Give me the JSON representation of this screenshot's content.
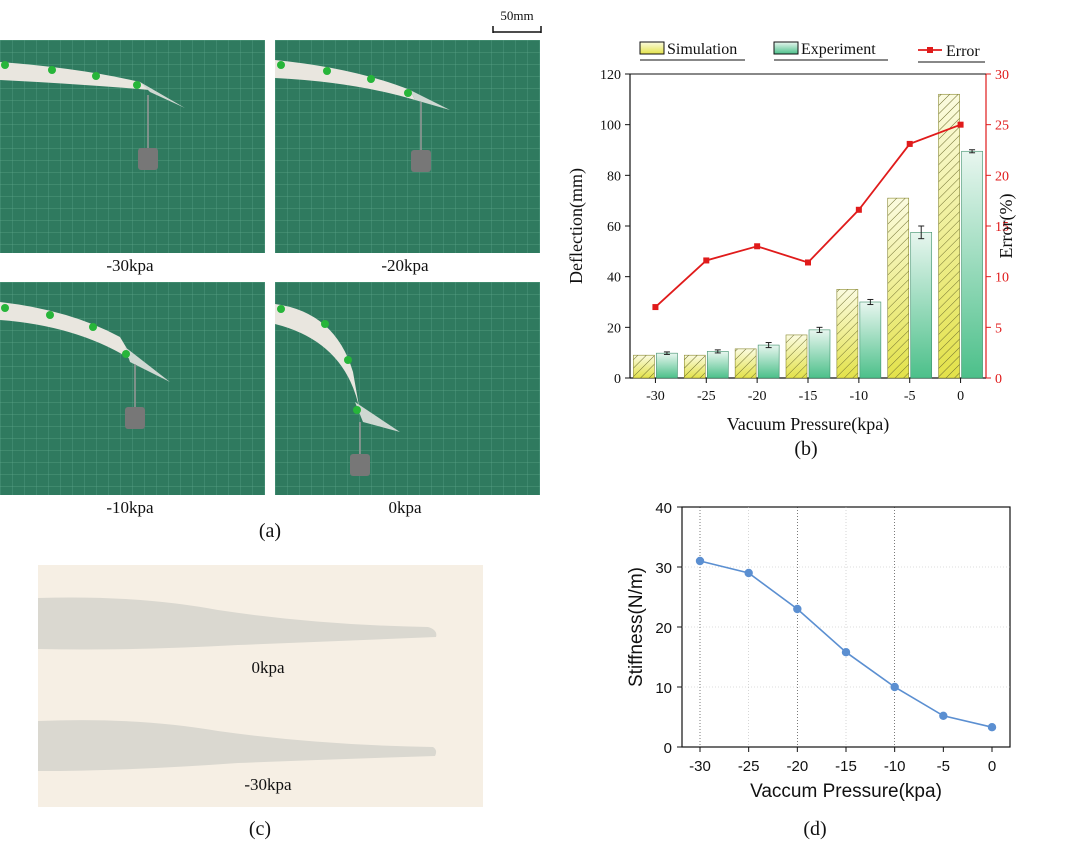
{
  "panel_a": {
    "scale_bar": "50mm",
    "photos": [
      {
        "label": "-30kpa"
      },
      {
        "label": "-20kpa"
      },
      {
        "label": "-10kpa"
      },
      {
        "label": "0kpa"
      }
    ],
    "caption": "(a)"
  },
  "panel_c": {
    "labels": [
      "0kpa",
      "-30kpa"
    ],
    "caption": "(c)"
  },
  "chart_data": [
    {
      "id": "b",
      "type": "bar",
      "caption": "(b)",
      "categories": [
        "-30",
        "-25",
        "-20",
        "-15",
        "-10",
        "-5",
        "0"
      ],
      "xlabel": "Vacuum Pressure(kpa)",
      "ylabel": "Deflection(mm)",
      "y2label": "Error(%)",
      "ylim": [
        0,
        120
      ],
      "y2lim": [
        0,
        30
      ],
      "yticks": [
        "0",
        "20",
        "40",
        "60",
        "80",
        "100",
        "120"
      ],
      "y2ticks": [
        "0",
        "5",
        "10",
        "15",
        "20",
        "25",
        "30"
      ],
      "legend_position": "top",
      "series": [
        {
          "name": "Simulation",
          "type": "bar",
          "axis": "left",
          "color": "#e8ea6a",
          "values": [
            9,
            9,
            11.5,
            17,
            35,
            71,
            112
          ]
        },
        {
          "name": "Experiment",
          "type": "bar",
          "axis": "left",
          "color": "#6ccf9e",
          "values": [
            9.8,
            10.5,
            13,
            19,
            30,
            57.5,
            89.5
          ],
          "errors": [
            0.5,
            0.6,
            1,
            1,
            1,
            2.5,
            0.6
          ]
        },
        {
          "name": "Error",
          "type": "line",
          "axis": "right",
          "color": "#e01b1b",
          "values": [
            7,
            11.6,
            13,
            11.4,
            16.6,
            23.1,
            25
          ]
        }
      ]
    },
    {
      "id": "d",
      "type": "line",
      "caption": "(d)",
      "x": [
        -30,
        -25,
        -20,
        -15,
        -10,
        -5,
        0
      ],
      "xticks": [
        "-30",
        "-25",
        "-20",
        "-15",
        "-10",
        "-5",
        "0"
      ],
      "xlabel": "Vaccum Pressure(kpa)",
      "ylabel": "Stiffness(N/m)",
      "ylim": [
        0,
        40
      ],
      "yticks": [
        "0",
        "10",
        "20",
        "30",
        "40"
      ],
      "grid": true,
      "series": [
        {
          "color": "#5b8fd1",
          "values": [
            31,
            29,
            23,
            15.8,
            10,
            5.2,
            3.3
          ]
        }
      ]
    }
  ]
}
